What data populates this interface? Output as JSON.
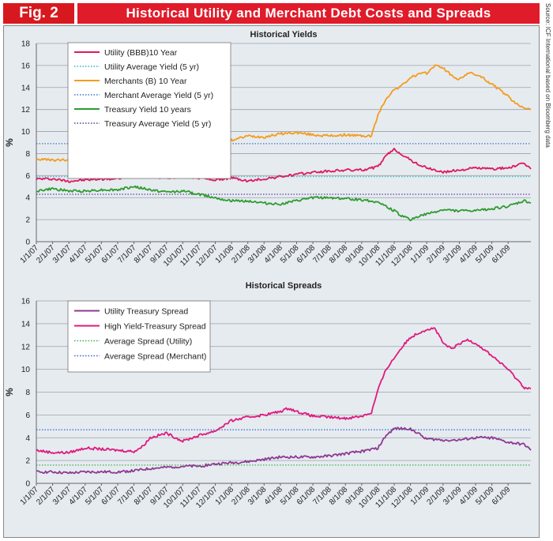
{
  "header": {
    "fig_label": "Fig. 2",
    "title": "Historical Utility and Merchant Debt Costs and Spreads",
    "source": "Source: ICF International based on Bloomberg data"
  },
  "colors": {
    "utility": "#e0185f",
    "utility_avg": "#33b5c4",
    "merchant": "#f39c1e",
    "merchant_avg": "#3a74c9",
    "treasury": "#2f9c2f",
    "treasury_avg": "#5a3d99",
    "spread_utility": "#8e3a92",
    "spread_high": "#e0197e",
    "spread_avg_util": "#3cae48",
    "spread_avg_merch": "#3366cc"
  },
  "chart_data": [
    {
      "type": "line",
      "title": "Historical Yields",
      "ylabel": "%",
      "ylim": [
        0,
        18
      ],
      "yticks": [
        0,
        2,
        4,
        6,
        8,
        10,
        12,
        14,
        16,
        18
      ],
      "x_tick_labels": [
        "1/1/07",
        "2/1/07",
        "3/1/07",
        "4/1/07",
        "5/1/07",
        "6/1/07",
        "7/1/07",
        "8/1/07",
        "9/1/07",
        "10/1/07",
        "11/1/07",
        "12/1/07",
        "1/1/08",
        "2/1/08",
        "3/1/08",
        "4/1/08",
        "5/1/08",
        "6/1/08",
        "7/1/08",
        "8/1/08",
        "9/1/08",
        "10/1/08",
        "11/1/08",
        "12/1/08",
        "1/1/09",
        "2/1/09",
        "3/1/09",
        "4/1/09",
        "5/1/09",
        "6/1/09"
      ],
      "x_range_months": [
        0,
        30.4
      ],
      "series": [
        {
          "name": "Utility (BBB)10 Year",
          "style": "solid",
          "color_key": "utility",
          "x": [
            0,
            1,
            2,
            3,
            4,
            5,
            6,
            7,
            8,
            9,
            10,
            11,
            12,
            13,
            14,
            15,
            16,
            17,
            18,
            19,
            20,
            21,
            21.5,
            22,
            22.5,
            23,
            23.5,
            24,
            25,
            26,
            27,
            28,
            29,
            30,
            30.4
          ],
          "y": [
            5.7,
            5.7,
            5.5,
            5.6,
            5.7,
            5.7,
            6.1,
            5.9,
            5.8,
            5.9,
            5.8,
            5.6,
            5.8,
            5.5,
            5.7,
            5.9,
            6.1,
            6.3,
            6.4,
            6.5,
            6.5,
            6.8,
            7.8,
            8.4,
            7.9,
            7.4,
            7.0,
            6.7,
            6.3,
            6.5,
            6.7,
            6.6,
            6.7,
            7.1,
            6.6
          ]
        },
        {
          "name": "Utility Average Yield (5 yr)",
          "style": "dotted",
          "color_key": "utility_avg",
          "x": [
            0,
            30.4
          ],
          "y": [
            5.9,
            5.9
          ]
        },
        {
          "name": "Merchants (B) 10 Year",
          "style": "solid",
          "color_key": "merchant",
          "x": [
            0,
            1,
            2,
            3,
            4,
            5,
            6,
            7,
            8,
            9,
            10,
            11,
            12,
            13,
            14,
            15,
            16,
            17,
            18,
            19,
            20,
            20.6,
            21,
            21.5,
            22,
            22.5,
            23,
            23.5,
            24,
            24.5,
            25,
            25.5,
            26,
            26.5,
            27,
            27.5,
            28,
            29,
            29.5,
            30,
            30.4
          ],
          "y": [
            7.5,
            7.4,
            7.4,
            7.7,
            7.6,
            7.8,
            8.3,
            8.9,
            8.7,
            8.5,
            8.5,
            9.0,
            9.2,
            9.6,
            9.5,
            9.8,
            9.9,
            9.7,
            9.6,
            9.7,
            9.6,
            9.6,
            11.5,
            13.0,
            13.8,
            14.2,
            14.9,
            15.2,
            15.3,
            16.0,
            15.8,
            15.1,
            14.7,
            15.3,
            15.2,
            14.8,
            14.3,
            13.2,
            12.5,
            12.2,
            12.0
          ]
        },
        {
          "name": "Merchant Average Yield (5 yr)",
          "style": "dotted",
          "color_key": "merchant_avg",
          "x": [
            0,
            30.4
          ],
          "y": [
            8.9,
            8.9
          ]
        },
        {
          "name": "Treasury Yield 10 years",
          "style": "solid",
          "color_key": "treasury",
          "x": [
            0,
            1,
            2,
            3,
            4,
            5,
            6,
            7,
            8,
            9,
            10,
            11,
            12,
            13,
            14,
            15,
            16,
            17,
            18,
            19,
            20,
            21,
            22,
            22.5,
            23,
            23.5,
            24,
            25,
            26,
            27,
            28,
            29,
            30,
            30.4
          ],
          "y": [
            4.6,
            4.8,
            4.6,
            4.6,
            4.7,
            4.7,
            5.0,
            4.7,
            4.5,
            4.6,
            4.3,
            4.0,
            3.7,
            3.7,
            3.5,
            3.4,
            3.7,
            4.0,
            4.0,
            3.9,
            3.8,
            3.6,
            2.8,
            2.3,
            2.0,
            2.3,
            2.5,
            2.9,
            2.8,
            2.8,
            3.0,
            3.2,
            3.7,
            3.5
          ]
        },
        {
          "name": "Treasury Average Yield (5 yr)",
          "style": "dotted",
          "color_key": "treasury_avg",
          "x": [
            0,
            30.4
          ],
          "y": [
            4.3,
            4.3
          ]
        }
      ]
    },
    {
      "type": "line",
      "title": "Historical Spreads",
      "ylabel": "%",
      "ylim": [
        0,
        16
      ],
      "yticks": [
        0,
        2,
        4,
        6,
        8,
        10,
        12,
        14,
        16
      ],
      "x_tick_labels": [
        "1/1/07",
        "2/1/07",
        "3/1/07",
        "4/1/07",
        "5/1/07",
        "6/1/07",
        "7/1/07",
        "8/1/07",
        "9/1/07",
        "10/1/07",
        "11/1/07",
        "12/1/07",
        "1/1/08",
        "2/1/08",
        "3/1/08",
        "4/1/08",
        "5/1/08",
        "6/1/08",
        "7/1/08",
        "8/1/08",
        "9/1/08",
        "10/1/08",
        "11/1/08",
        "12/1/08",
        "1/1/09",
        "2/1/09",
        "3/1/09",
        "4/1/09",
        "5/1/09",
        "6/1/09"
      ],
      "x_range_months": [
        0,
        30.4
      ],
      "series": [
        {
          "name": "Utility Treasury Spread",
          "style": "solid",
          "color_key": "spread_utility",
          "x": [
            0,
            1,
            2,
            3,
            4,
            5,
            6,
            7,
            8,
            9,
            10,
            11,
            12,
            13,
            14,
            15,
            16,
            17,
            18,
            19,
            20,
            21,
            21.5,
            22,
            23,
            24,
            25,
            26,
            27,
            28,
            29,
            30,
            30.4
          ],
          "y": [
            1.0,
            1.0,
            0.9,
            1.0,
            1.0,
            1.0,
            1.1,
            1.3,
            1.4,
            1.5,
            1.5,
            1.7,
            1.8,
            1.9,
            2.1,
            2.3,
            2.3,
            2.3,
            2.4,
            2.6,
            2.8,
            3.1,
            4.2,
            4.8,
            4.8,
            3.9,
            3.8,
            3.8,
            4.0,
            4.0,
            3.6,
            3.4,
            2.9
          ]
        },
        {
          "name": "High Yield-Treasury Spread",
          "style": "solid",
          "color_key": "spread_high",
          "x": [
            0,
            1,
            2,
            3,
            4,
            5,
            6,
            6.5,
            7,
            7.5,
            8,
            9,
            10,
            11,
            12,
            13,
            14,
            15,
            15.5,
            16,
            17,
            18,
            19,
            19.5,
            20,
            20.6,
            21,
            21.5,
            22,
            22.5,
            23,
            23.5,
            24,
            24.5,
            25,
            25.5,
            26,
            26.5,
            27,
            28,
            29,
            29.5,
            30,
            30.4
          ],
          "y": [
            2.9,
            2.7,
            2.7,
            3.1,
            3.0,
            2.9,
            2.8,
            3.2,
            4.0,
            4.2,
            4.4,
            3.7,
            4.2,
            4.6,
            5.5,
            5.8,
            6.0,
            6.3,
            6.6,
            6.3,
            5.9,
            5.8,
            5.7,
            5.8,
            5.9,
            6.2,
            8.2,
            10.0,
            11.0,
            12.0,
            12.8,
            13.2,
            13.5,
            13.6,
            12.3,
            11.8,
            12.2,
            12.6,
            12.3,
            11.2,
            10.0,
            9.2,
            8.4,
            8.3
          ]
        },
        {
          "name": "Average Spread (Utility)",
          "style": "dotted",
          "color_key": "spread_avg_util",
          "x": [
            0,
            30.4
          ],
          "y": [
            1.6,
            1.6
          ]
        },
        {
          "name": "Average Spread (Merchant)",
          "style": "dotted",
          "color_key": "spread_avg_merch",
          "x": [
            0,
            30.4
          ],
          "y": [
            4.7,
            4.7
          ]
        }
      ]
    }
  ]
}
